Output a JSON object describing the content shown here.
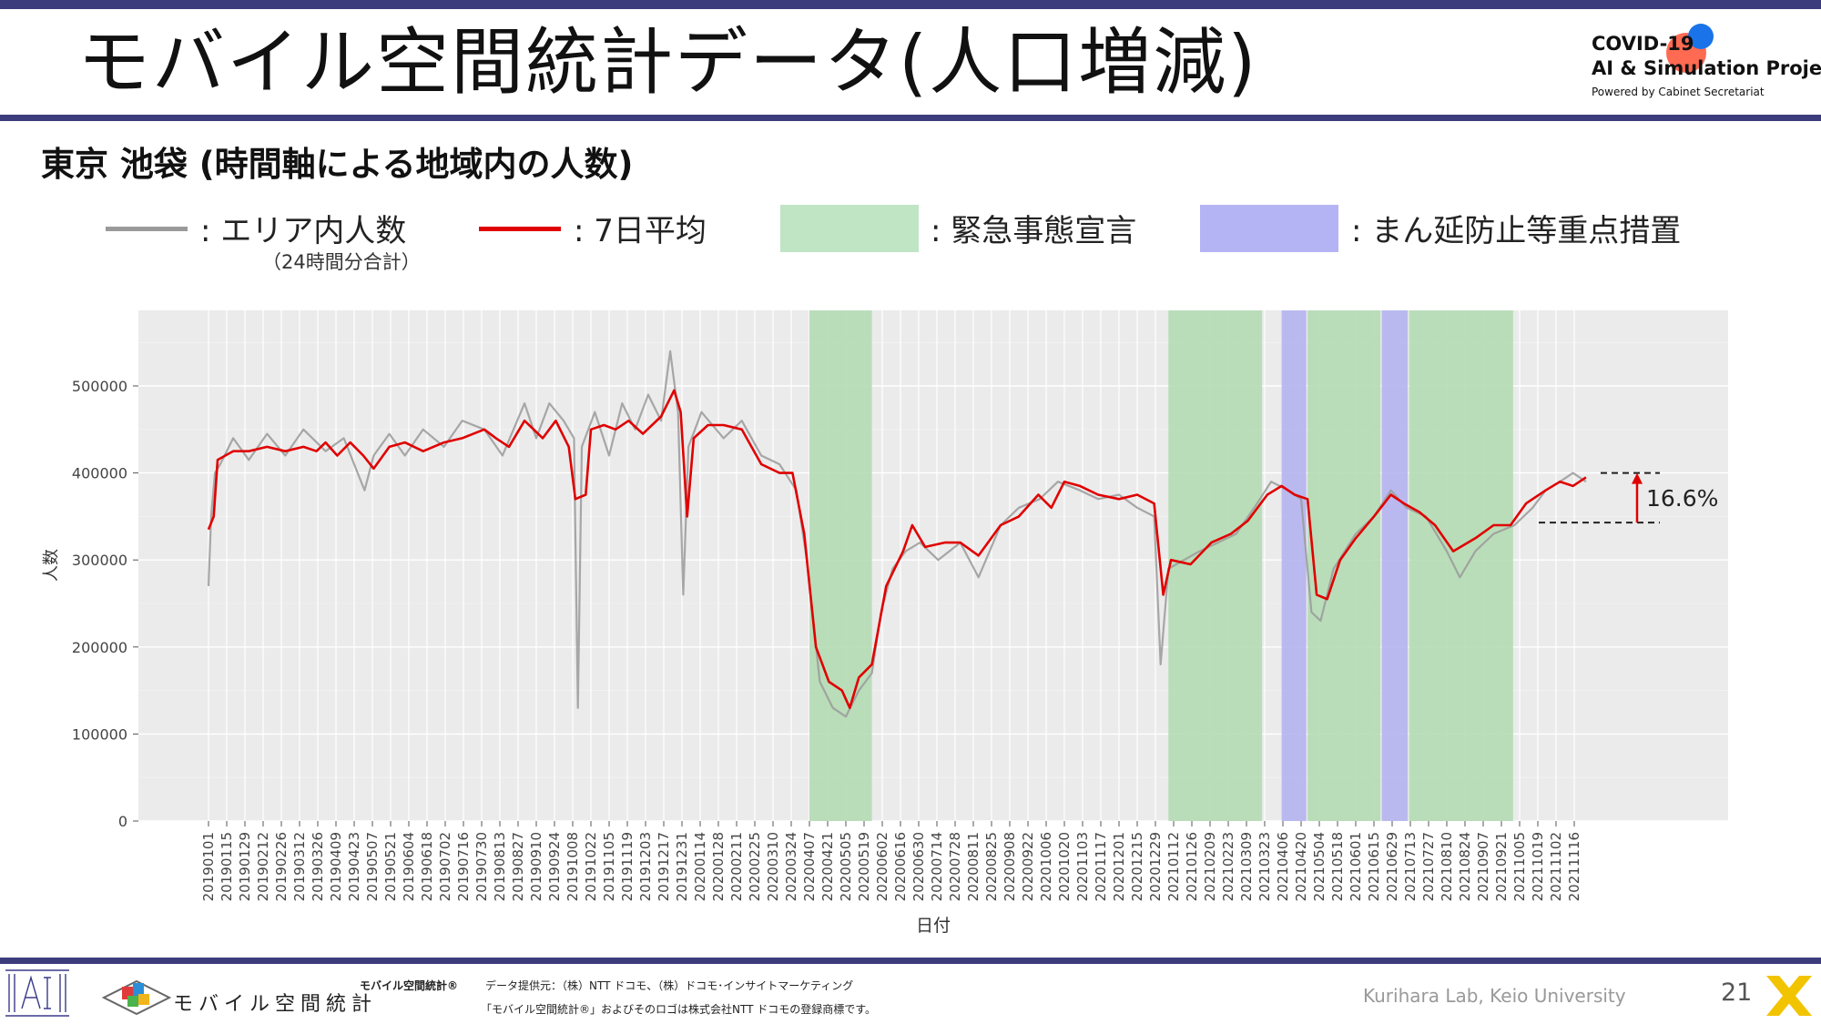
{
  "slide": {
    "title": "モバイル空間統計データ(人口増減)",
    "subtitle": "東京 池袋 (時間軸による地域内の人数)",
    "page_number": "21",
    "footer_credit": "Kurihara Lab, Keio University",
    "footer_source_label": "モバイル空間統計®",
    "footer_source_text": "データ提供元：（株）NTT ドコモ、（株）ドコモ･インサイトマーケティング",
    "footer_trademark": "「モバイル空間統計®」およびそのロゴは株式会社NTT ドコモの登録商標です。",
    "mobile_logo_text": "モバイル空間統計",
    "covid_logo": {
      "line1": "COVID-19",
      "line2": "AI & Simulation Project",
      "line3": "Powered by Cabinet Secretariat"
    },
    "colors": {
      "band": "#3c3c7c",
      "raw_line": "#9a9a9a",
      "avg_line": "#e00000",
      "emergency": "#b4dcb4",
      "semi_emergency": "#b4b4f0",
      "plot_bg": "#ebebeb"
    },
    "icons": [
      "ai-lab-logo-icon",
      "mobile-stats-logo-icon",
      "covid-project-logo-icon",
      "x-logo-icon"
    ]
  },
  "legend": {
    "raw": ": エリア内人数",
    "raw_note": "（24時間分合計）",
    "avg": ": 7日平均",
    "emergency": ": 緊急事態宣言",
    "semi": ": まん延防止等重点措置"
  },
  "chart_data": {
    "type": "line",
    "xlabel": "日付",
    "ylabel": "人数",
    "ylim": [
      0,
      590000
    ],
    "yticks": [
      0,
      100000,
      200000,
      300000,
      400000,
      500000
    ],
    "xticks": [
      "20190101",
      "20190115",
      "20190129",
      "20190212",
      "20190226",
      "20190312",
      "20190326",
      "20190409",
      "20190423",
      "20190507",
      "20190521",
      "20190604",
      "20190618",
      "20190702",
      "20190716",
      "20190730",
      "20190813",
      "20190827",
      "20190910",
      "20190924",
      "20191008",
      "20191022",
      "20191105",
      "20191119",
      "20191203",
      "20191217",
      "20191231",
      "20200114",
      "20200128",
      "20200211",
      "20200225",
      "20200310",
      "20200324",
      "20200407",
      "20200421",
      "20200505",
      "20200519",
      "20200602",
      "20200616",
      "20200630",
      "20200714",
      "20200728",
      "20200811",
      "20200825",
      "20200908",
      "20200922",
      "20201006",
      "20201020",
      "20201103",
      "20201117",
      "20201201",
      "20201215",
      "20201229",
      "20210112",
      "20210126",
      "20210209",
      "20210223",
      "20210309",
      "20210323",
      "20210406",
      "20210420",
      "20210504",
      "20210518",
      "20210601",
      "20210615",
      "20210629",
      "20210713",
      "20210727",
      "20210810",
      "20210824",
      "20210907",
      "20210921",
      "20211005",
      "20211019",
      "20211102",
      "20211116"
    ],
    "x_start": "2019-01-01",
    "x_end": "2021-11-30",
    "grid": true,
    "legend_placement": "top",
    "shaded_periods": [
      {
        "type": "emergency",
        "start": "2020-04-07",
        "end": "2020-05-25"
      },
      {
        "type": "emergency",
        "start": "2021-01-08",
        "end": "2021-03-21"
      },
      {
        "type": "semi",
        "start": "2021-04-05",
        "end": "2021-04-24"
      },
      {
        "type": "emergency",
        "start": "2021-04-25",
        "end": "2021-06-20"
      },
      {
        "type": "semi",
        "start": "2021-06-21",
        "end": "2021-07-11"
      },
      {
        "type": "emergency",
        "start": "2021-07-12",
        "end": "2021-09-30"
      }
    ],
    "series": [
      {
        "name": "エリア内人数",
        "points": [
          [
            "2019-01-01",
            270000
          ],
          [
            "2019-01-03",
            350000
          ],
          [
            "2019-01-06",
            400000
          ],
          [
            "2019-01-10",
            410000
          ],
          [
            "2019-01-20",
            440000
          ],
          [
            "2019-02-01",
            415000
          ],
          [
            "2019-02-15",
            445000
          ],
          [
            "2019-03-01",
            420000
          ],
          [
            "2019-03-15",
            450000
          ],
          [
            "2019-04-01",
            425000
          ],
          [
            "2019-04-15",
            440000
          ],
          [
            "2019-05-01",
            380000
          ],
          [
            "2019-05-08",
            420000
          ],
          [
            "2019-05-20",
            445000
          ],
          [
            "2019-06-01",
            420000
          ],
          [
            "2019-06-15",
            450000
          ],
          [
            "2019-07-01",
            430000
          ],
          [
            "2019-07-15",
            460000
          ],
          [
            "2019-08-01",
            450000
          ],
          [
            "2019-08-15",
            420000
          ],
          [
            "2019-09-01",
            480000
          ],
          [
            "2019-09-10",
            440000
          ],
          [
            "2019-09-20",
            480000
          ],
          [
            "2019-10-01",
            460000
          ],
          [
            "2019-10-09",
            440000
          ],
          [
            "2019-10-12",
            130000
          ],
          [
            "2019-10-15",
            430000
          ],
          [
            "2019-10-25",
            470000
          ],
          [
            "2019-11-05",
            420000
          ],
          [
            "2019-11-15",
            480000
          ],
          [
            "2019-11-25",
            450000
          ],
          [
            "2019-12-05",
            490000
          ],
          [
            "2019-12-15",
            460000
          ],
          [
            "2019-12-22",
            540000
          ],
          [
            "2019-12-28",
            470000
          ],
          [
            "2020-01-01",
            260000
          ],
          [
            "2020-01-05",
            430000
          ],
          [
            "2020-01-15",
            470000
          ],
          [
            "2020-02-01",
            440000
          ],
          [
            "2020-02-15",
            460000
          ],
          [
            "2020-03-01",
            420000
          ],
          [
            "2020-03-15",
            410000
          ],
          [
            "2020-03-28",
            380000
          ],
          [
            "2020-04-05",
            300000
          ],
          [
            "2020-04-15",
            160000
          ],
          [
            "2020-04-25",
            130000
          ],
          [
            "2020-05-05",
            120000
          ],
          [
            "2020-05-15",
            150000
          ],
          [
            "2020-05-25",
            170000
          ],
          [
            "2020-06-01",
            240000
          ],
          [
            "2020-06-10",
            290000
          ],
          [
            "2020-06-20",
            310000
          ],
          [
            "2020-07-01",
            320000
          ],
          [
            "2020-07-15",
            300000
          ],
          [
            "2020-08-01",
            320000
          ],
          [
            "2020-08-15",
            280000
          ],
          [
            "2020-09-01",
            340000
          ],
          [
            "2020-09-15",
            360000
          ],
          [
            "2020-10-01",
            370000
          ],
          [
            "2020-10-15",
            390000
          ],
          [
            "2020-11-01",
            380000
          ],
          [
            "2020-11-15",
            370000
          ],
          [
            "2020-12-01",
            375000
          ],
          [
            "2020-12-15",
            360000
          ],
          [
            "2020-12-28",
            350000
          ],
          [
            "2021-01-02",
            180000
          ],
          [
            "2021-01-08",
            290000
          ],
          [
            "2021-01-20",
            300000
          ],
          [
            "2021-02-01",
            310000
          ],
          [
            "2021-02-15",
            320000
          ],
          [
            "2021-03-01",
            330000
          ],
          [
            "2021-03-15",
            360000
          ],
          [
            "2021-03-28",
            390000
          ],
          [
            "2021-04-10",
            380000
          ],
          [
            "2021-04-20",
            370000
          ],
          [
            "2021-04-28",
            240000
          ],
          [
            "2021-05-05",
            230000
          ],
          [
            "2021-05-15",
            290000
          ],
          [
            "2021-06-01",
            330000
          ],
          [
            "2021-06-15",
            350000
          ],
          [
            "2021-06-28",
            380000
          ],
          [
            "2021-07-10",
            360000
          ],
          [
            "2021-07-25",
            350000
          ],
          [
            "2021-08-10",
            310000
          ],
          [
            "2021-08-20",
            280000
          ],
          [
            "2021-09-01",
            310000
          ],
          [
            "2021-09-15",
            330000
          ],
          [
            "2021-10-01",
            340000
          ],
          [
            "2021-10-15",
            360000
          ],
          [
            "2021-10-25",
            380000
          ],
          [
            "2021-11-05",
            390000
          ],
          [
            "2021-11-15",
            400000
          ],
          [
            "2021-11-25",
            390000
          ]
        ]
      },
      {
        "name": "7日平均",
        "points": [
          [
            "2019-01-01",
            335000
          ],
          [
            "2019-01-05",
            350000
          ],
          [
            "2019-01-08",
            415000
          ],
          [
            "2019-01-20",
            425000
          ],
          [
            "2019-02-01",
            425000
          ],
          [
            "2019-02-15",
            430000
          ],
          [
            "2019-03-01",
            425000
          ],
          [
            "2019-03-15",
            430000
          ],
          [
            "2019-03-25",
            425000
          ],
          [
            "2019-04-01",
            435000
          ],
          [
            "2019-04-10",
            420000
          ],
          [
            "2019-04-20",
            435000
          ],
          [
            "2019-04-30",
            420000
          ],
          [
            "2019-05-08",
            405000
          ],
          [
            "2019-05-20",
            430000
          ],
          [
            "2019-06-01",
            435000
          ],
          [
            "2019-06-15",
            425000
          ],
          [
            "2019-07-01",
            435000
          ],
          [
            "2019-07-15",
            440000
          ],
          [
            "2019-08-01",
            450000
          ],
          [
            "2019-08-10",
            440000
          ],
          [
            "2019-08-20",
            430000
          ],
          [
            "2019-09-01",
            460000
          ],
          [
            "2019-09-15",
            440000
          ],
          [
            "2019-09-25",
            460000
          ],
          [
            "2019-10-05",
            430000
          ],
          [
            "2019-10-10",
            370000
          ],
          [
            "2019-10-18",
            375000
          ],
          [
            "2019-10-22",
            450000
          ],
          [
            "2019-11-01",
            455000
          ],
          [
            "2019-11-10",
            450000
          ],
          [
            "2019-11-20",
            460000
          ],
          [
            "2019-12-01",
            445000
          ],
          [
            "2019-12-15",
            465000
          ],
          [
            "2019-12-25",
            495000
          ],
          [
            "2019-12-30",
            470000
          ],
          [
            "2020-01-04",
            350000
          ],
          [
            "2020-01-09",
            440000
          ],
          [
            "2020-01-20",
            455000
          ],
          [
            "2020-02-01",
            455000
          ],
          [
            "2020-02-15",
            450000
          ],
          [
            "2020-03-01",
            410000
          ],
          [
            "2020-03-15",
            400000
          ],
          [
            "2020-03-25",
            400000
          ],
          [
            "2020-04-03",
            330000
          ],
          [
            "2020-04-12",
            200000
          ],
          [
            "2020-04-22",
            160000
          ],
          [
            "2020-05-02",
            150000
          ],
          [
            "2020-05-08",
            130000
          ],
          [
            "2020-05-15",
            165000
          ],
          [
            "2020-05-25",
            180000
          ],
          [
            "2020-06-05",
            270000
          ],
          [
            "2020-06-18",
            310000
          ],
          [
            "2020-06-25",
            340000
          ],
          [
            "2020-07-05",
            315000
          ],
          [
            "2020-07-20",
            320000
          ],
          [
            "2020-08-01",
            320000
          ],
          [
            "2020-08-15",
            305000
          ],
          [
            "2020-09-01",
            340000
          ],
          [
            "2020-09-15",
            350000
          ],
          [
            "2020-09-30",
            375000
          ],
          [
            "2020-10-10",
            360000
          ],
          [
            "2020-10-20",
            390000
          ],
          [
            "2020-11-01",
            385000
          ],
          [
            "2020-11-15",
            375000
          ],
          [
            "2020-12-01",
            370000
          ],
          [
            "2020-12-15",
            375000
          ],
          [
            "2020-12-28",
            365000
          ],
          [
            "2021-01-04",
            260000
          ],
          [
            "2021-01-10",
            300000
          ],
          [
            "2021-01-25",
            295000
          ],
          [
            "2021-02-10",
            320000
          ],
          [
            "2021-02-25",
            330000
          ],
          [
            "2021-03-10",
            345000
          ],
          [
            "2021-03-25",
            375000
          ],
          [
            "2021-04-05",
            385000
          ],
          [
            "2021-04-15",
            375000
          ],
          [
            "2021-04-25",
            370000
          ],
          [
            "2021-05-02",
            260000
          ],
          [
            "2021-05-10",
            255000
          ],
          [
            "2021-05-20",
            300000
          ],
          [
            "2021-06-01",
            325000
          ],
          [
            "2021-06-15",
            350000
          ],
          [
            "2021-06-28",
            375000
          ],
          [
            "2021-07-08",
            365000
          ],
          [
            "2021-07-20",
            355000
          ],
          [
            "2021-08-01",
            340000
          ],
          [
            "2021-08-15",
            310000
          ],
          [
            "2021-09-01",
            325000
          ],
          [
            "2021-09-15",
            340000
          ],
          [
            "2021-09-28",
            340000
          ],
          [
            "2021-10-10",
            365000
          ],
          [
            "2021-10-25",
            380000
          ],
          [
            "2021-11-05",
            390000
          ],
          [
            "2021-11-15",
            385000
          ],
          [
            "2021-11-25",
            395000
          ]
        ]
      }
    ],
    "annotation": {
      "text": "16.6%",
      "from": 343000,
      "to": 400000
    }
  }
}
